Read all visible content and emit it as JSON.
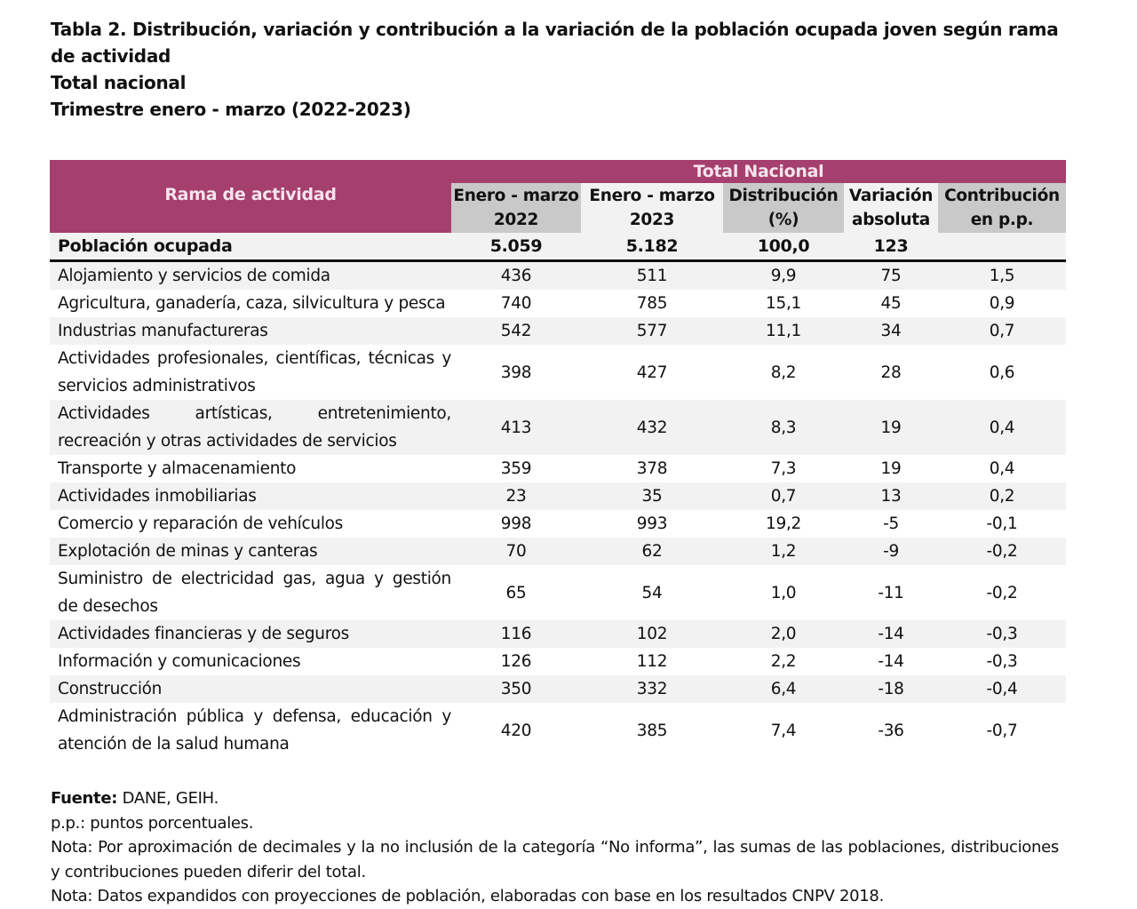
{
  "title": {
    "line1": "Tabla 2. Distribución, variación y contribución a la variación de la población ocupada joven según rama de actividad",
    "line2": "Total nacional",
    "line3": "Trimestre enero - marzo (2022-2023)"
  },
  "table": {
    "group_header": "Total Nacional",
    "columns": [
      "Rama de actividad",
      "Enero - marzo 2022",
      "Enero - marzo 2023",
      "Distribución (%)",
      "Variación absoluta",
      "Contribución en p.p."
    ],
    "total": {
      "label": "Población ocupada",
      "values": [
        "5.059",
        "5.182",
        "100,0",
        "123",
        ""
      ]
    },
    "rows": [
      {
        "name": "Alojamiento y servicios de comida",
        "values": [
          "436",
          "511",
          "9,9",
          "75",
          "1,5"
        ]
      },
      {
        "name": "Agricultura, ganadería, caza, silvicultura y pesca",
        "values": [
          "740",
          "785",
          "15,1",
          "45",
          "0,9"
        ]
      },
      {
        "name": "Industrias manufactureras",
        "values": [
          "542",
          "577",
          "11,1",
          "34",
          "0,7"
        ]
      },
      {
        "name": "Actividades profesionales, científicas, técnicas y servicios administrativos",
        "values": [
          "398",
          "427",
          "8,2",
          "28",
          "0,6"
        ]
      },
      {
        "name": "Actividades artísticas, entretenimiento, recreación y otras actividades de servicios",
        "values": [
          "413",
          "432",
          "8,3",
          "19",
          "0,4"
        ]
      },
      {
        "name": "Transporte y almacenamiento",
        "values": [
          "359",
          "378",
          "7,3",
          "19",
          "0,4"
        ]
      },
      {
        "name": "Actividades inmobiliarias",
        "values": [
          "23",
          "35",
          "0,7",
          "13",
          "0,2"
        ]
      },
      {
        "name": "Comercio y reparación de vehículos",
        "values": [
          "998",
          "993",
          "19,2",
          "-5",
          "-0,1"
        ]
      },
      {
        "name": "Explotación de minas y canteras",
        "values": [
          "70",
          "62",
          "1,2",
          "-9",
          "-0,2"
        ]
      },
      {
        "name": "Suministro de electricidad gas, agua y gestión de desechos",
        "values": [
          "65",
          "54",
          "1,0",
          "-11",
          "-0,2"
        ]
      },
      {
        "name": "Actividades financieras y de seguros",
        "values": [
          "116",
          "102",
          "2,0",
          "-14",
          "-0,3"
        ]
      },
      {
        "name": "Información y comunicaciones",
        "values": [
          "126",
          "112",
          "2,2",
          "-14",
          "-0,3"
        ]
      },
      {
        "name": "Construcción",
        "values": [
          "350",
          "332",
          "6,4",
          "-18",
          "-0,4"
        ]
      },
      {
        "name": "Administración pública y defensa, educación y atención de la salud humana",
        "values": [
          "420",
          "385",
          "7,4",
          "-36",
          "-0,7"
        ]
      }
    ]
  },
  "footer": {
    "source_label": "Fuente:",
    "source": " DANE, GEIH.",
    "pp": "p.p.: puntos porcentuales.",
    "note1": "Nota: Por aproximación de decimales y la no inclusión de la categoría “No informa”, las sumas de las poblaciones, distribuciones y contribuciones pueden diferir del total.",
    "note2": "Nota: Datos expandidos con proyecciones de población, elaboradas con base en los resultados CNPV 2018."
  },
  "colors": {
    "header": "#a53f6d",
    "subheader_gray": "#c9c9c9",
    "row_alt": "#f2f2f2"
  }
}
